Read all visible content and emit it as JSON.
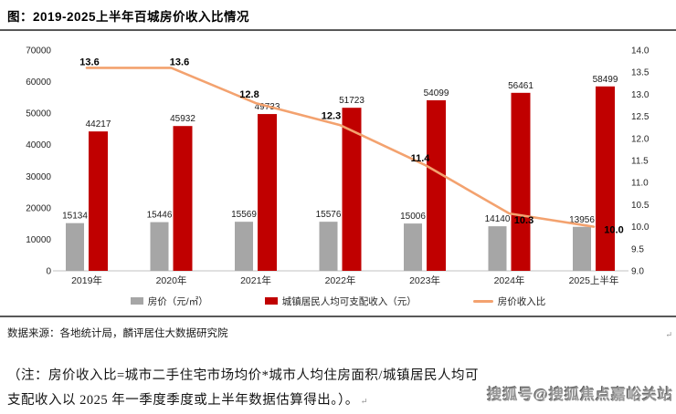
{
  "header": {
    "title": "图：2019-2025上半年百城房价收入比情况"
  },
  "chart_data": {
    "type": "bar",
    "title": "2019-2025上半年百城房价收入比情况",
    "categories": [
      "2019年",
      "2020年",
      "2021年",
      "2022年",
      "2023年",
      "2024年",
      "2025上半年"
    ],
    "series": [
      {
        "name": "房价（元/㎡）",
        "type": "bar",
        "color": "#a6a6a6",
        "values": [
          15134,
          15446,
          15569,
          15576,
          15006,
          14140,
          13956
        ]
      },
      {
        "name": "城镇居民人均可支配收入（元）",
        "type": "bar",
        "color": "#c00000",
        "values": [
          44217,
          45932,
          49733,
          51723,
          54099,
          56461,
          58499
        ]
      },
      {
        "name": "房价收入比",
        "type": "line",
        "color": "#f3a26f",
        "values": [
          13.6,
          13.6,
          12.8,
          12.3,
          11.4,
          10.3,
          10.0
        ],
        "point_labels": [
          "13.6",
          "13.6",
          "12.8",
          "12.3",
          "11.4",
          "10.3",
          "10.0"
        ]
      }
    ],
    "left_axis": {
      "min": 0,
      "max": 70000,
      "ticks": [
        "70000",
        "60000",
        "50000",
        "40000",
        "30000",
        "20000",
        "10000",
        "0"
      ]
    },
    "right_axis": {
      "min": 9.0,
      "max": 14.0,
      "ticks": [
        "14.0",
        "13.5",
        "13.0",
        "12.5",
        "12.0",
        "11.5",
        "11.0",
        "10.5",
        "10.0",
        "9.5",
        "9.0"
      ]
    },
    "grid": false,
    "legend_position": "bottom"
  },
  "legend": {
    "items": [
      {
        "label": "房价（元/㎡）",
        "swatch": "bar",
        "color": "#a6a6a6"
      },
      {
        "label": "城镇居民人均可支配收入（元）",
        "swatch": "bar",
        "color": "#c00000"
      },
      {
        "label": "房价收入比",
        "swatch": "line",
        "color": "#f3a26f"
      }
    ]
  },
  "footer": {
    "source": "数据来源：各地统计局，麟评居住大数据研究院",
    "paragraph_mark": "↵",
    "note_lines": [
      "（注：房价收入比=城市二手住宅市场均价*城市人均住房面积/城镇居民人均可",
      "支配收入以 2025 年一季度季度或上半年数据估算得出。）。"
    ]
  },
  "watermark": "搜狐号@搜狐焦点嘉峪关站"
}
